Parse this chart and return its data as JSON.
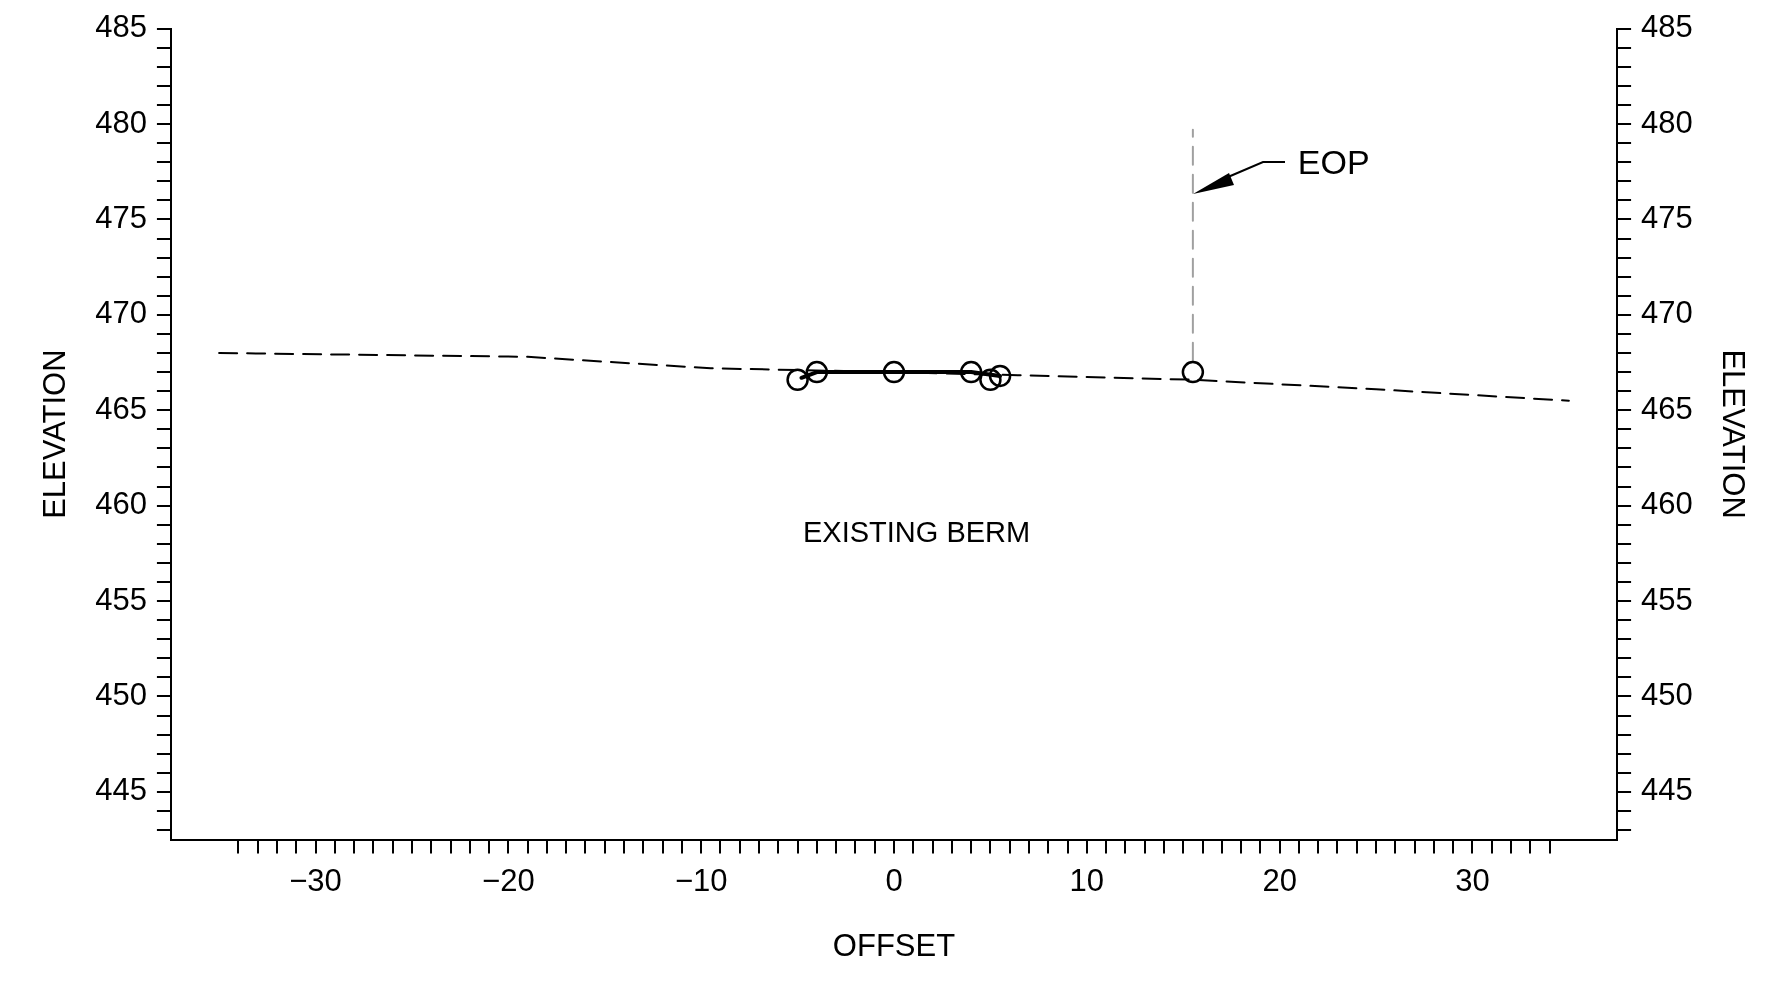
{
  "chart_data": {
    "type": "line",
    "xlabel": "OFFSET",
    "ylabel": "ELEVATION",
    "y2label": "ELEVATION",
    "xlim": [
      -37.5,
      37.5
    ],
    "ylim": [
      442.5,
      485
    ],
    "y2lim": [
      442.5,
      485
    ],
    "xticks": [
      {
        "value": -34,
        "label": null
      },
      {
        "value": -33,
        "label": null
      },
      {
        "value": -32,
        "label": null
      },
      {
        "value": -31,
        "label": null
      },
      {
        "value": -30,
        "label": "−30"
      },
      {
        "value": -29,
        "label": null
      },
      {
        "value": -28,
        "label": null
      },
      {
        "value": -27,
        "label": null
      },
      {
        "value": -26,
        "label": null
      },
      {
        "value": -25,
        "label": null
      },
      {
        "value": -24,
        "label": null
      },
      {
        "value": -23,
        "label": null
      },
      {
        "value": -22,
        "label": null
      },
      {
        "value": -21,
        "label": null
      },
      {
        "value": -20,
        "label": "−20"
      },
      {
        "value": -19,
        "label": null
      },
      {
        "value": -18,
        "label": null
      },
      {
        "value": -17,
        "label": null
      },
      {
        "value": -16,
        "label": null
      },
      {
        "value": -15,
        "label": null
      },
      {
        "value": -14,
        "label": null
      },
      {
        "value": -13,
        "label": null
      },
      {
        "value": -12,
        "label": null
      },
      {
        "value": -11,
        "label": null
      },
      {
        "value": -10,
        "label": "−10"
      },
      {
        "value": -9,
        "label": null
      },
      {
        "value": -8,
        "label": null
      },
      {
        "value": -7,
        "label": null
      },
      {
        "value": -6,
        "label": null
      },
      {
        "value": -5,
        "label": null
      },
      {
        "value": -4,
        "label": null
      },
      {
        "value": -3,
        "label": null
      },
      {
        "value": -2,
        "label": null
      },
      {
        "value": -1,
        "label": null
      },
      0,
      {
        "value": 1,
        "label": null
      },
      {
        "value": 2,
        "label": null
      },
      {
        "value": 3,
        "label": null
      },
      {
        "value": 4,
        "label": null
      },
      {
        "value": 5,
        "label": null
      },
      {
        "value": 6,
        "label": null
      },
      {
        "value": 7,
        "label": null
      },
      {
        "value": 8,
        "label": null
      },
      {
        "value": 9,
        "label": null
      },
      10,
      {
        "value": 11,
        "label": null
      },
      {
        "value": 12,
        "label": null
      },
      {
        "value": 13,
        "label": null
      },
      {
        "value": 14,
        "label": null
      },
      {
        "value": 15,
        "label": null
      },
      {
        "value": 16,
        "label": null
      },
      {
        "value": 17,
        "label": null
      },
      {
        "value": 18,
        "label": null
      },
      {
        "value": 19,
        "label": null
      },
      20,
      {
        "value": 21,
        "label": null
      },
      {
        "value": 22,
        "label": null
      },
      {
        "value": 23,
        "label": null
      },
      {
        "value": 24,
        "label": null
      },
      {
        "value": 25,
        "label": null
      },
      {
        "value": 26,
        "label": null
      },
      {
        "value": 27,
        "label": null
      },
      {
        "value": 28,
        "label": null
      },
      {
        "value": 29,
        "label": null
      },
      30,
      {
        "value": 31,
        "label": null
      },
      {
        "value": 32,
        "label": null
      },
      {
        "value": 33,
        "label": null
      },
      {
        "value": 34,
        "label": null
      }
    ],
    "yticks": [
      {
        "value": 443,
        "label": null
      },
      {
        "value": 444,
        "label": null
      },
      445,
      {
        "value": 446,
        "label": null
      },
      {
        "value": 447,
        "label": null
      },
      {
        "value": 448,
        "label": null
      },
      {
        "value": 449,
        "label": null
      },
      450,
      {
        "value": 451,
        "label": null
      },
      {
        "value": 452,
        "label": null
      },
      {
        "value": 453,
        "label": null
      },
      {
        "value": 454,
        "label": null
      },
      455,
      {
        "value": 456,
        "label": null
      },
      {
        "value": 457,
        "label": null
      },
      {
        "value": 458,
        "label": null
      },
      {
        "value": 459,
        "label": null
      },
      460,
      {
        "value": 461,
        "label": null
      },
      {
        "value": 462,
        "label": null
      },
      {
        "value": 463,
        "label": null
      },
      {
        "value": 464,
        "label": null
      },
      465,
      {
        "value": 466,
        "label": null
      },
      {
        "value": 467,
        "label": null
      },
      {
        "value": 468,
        "label": null
      },
      {
        "value": 469,
        "label": null
      },
      470,
      {
        "value": 471,
        "label": null
      },
      {
        "value": 472,
        "label": null
      },
      {
        "value": 473,
        "label": null
      },
      {
        "value": 474,
        "label": null
      },
      475,
      {
        "value": 476,
        "label": null
      },
      {
        "value": 477,
        "label": null
      },
      {
        "value": 478,
        "label": null
      },
      {
        "value": 479,
        "label": null
      },
      480,
      {
        "value": 481,
        "label": null
      },
      {
        "value": 482,
        "label": null
      },
      {
        "value": 483,
        "label": null
      },
      {
        "value": 484,
        "label": null
      },
      485
    ],
    "y2ticks": [
      {
        "value": 443,
        "label": null
      },
      {
        "value": 444,
        "label": null
      },
      445,
      {
        "value": 446,
        "label": null
      },
      {
        "value": 447,
        "label": null
      },
      {
        "value": 448,
        "label": null
      },
      {
        "value": 449,
        "label": null
      },
      450,
      {
        "value": 451,
        "label": null
      },
      {
        "value": 452,
        "label": null
      },
      {
        "value": 453,
        "label": null
      },
      {
        "value": 454,
        "label": null
      },
      455,
      {
        "value": 456,
        "label": null
      },
      {
        "value": 457,
        "label": null
      },
      {
        "value": 458,
        "label": null
      },
      {
        "value": 459,
        "label": null
      },
      460,
      {
        "value": 461,
        "label": null
      },
      {
        "value": 462,
        "label": null
      },
      {
        "value": 463,
        "label": null
      },
      {
        "value": 464,
        "label": null
      },
      465,
      {
        "value": 466,
        "label": null
      },
      {
        "value": 467,
        "label": null
      },
      {
        "value": 468,
        "label": null
      },
      {
        "value": 469,
        "label": null
      },
      470,
      {
        "value": 471,
        "label": null
      },
      {
        "value": 472,
        "label": null
      },
      {
        "value": 473,
        "label": null
      },
      {
        "value": 474,
        "label": null
      },
      475,
      {
        "value": 476,
        "label": null
      },
      {
        "value": 477,
        "label": null
      },
      {
        "value": 478,
        "label": null
      },
      {
        "value": 479,
        "label": null
      },
      480,
      {
        "value": 481,
        "label": null
      },
      {
        "value": 482,
        "label": null
      },
      {
        "value": 483,
        "label": null
      },
      {
        "value": 484,
        "label": null
      },
      485
    ],
    "grid": false,
    "legend": false,
    "series": [
      {
        "color": "#000000",
        "line_style": "dashed",
        "marker": "none",
        "x": [
          -35,
          -19,
          -9.5,
          0,
          15.5,
          25,
          35
        ],
        "values": [
          468,
          467.8,
          467.2,
          467,
          466.6,
          466.1,
          465.5
        ]
      },
      {
        "color": "#000000",
        "line_style": "solid",
        "marker": "none",
        "x": [
          -4.8,
          -4,
          4,
          5.5
        ],
        "values": [
          466.7,
          467,
          467,
          466.8
        ]
      },
      {
        "type": "scatter",
        "color": "#000000",
        "marker": "circle",
        "x": [
          -5,
          -4,
          0,
          4,
          5,
          5.5,
          15.5
        ],
        "values": [
          466.6,
          467,
          467,
          467,
          466.6,
          466.8,
          467
        ]
      },
      {
        "color": "#a0a0a0",
        "line_style": "dashed",
        "marker": "none",
        "x": [
          15.5,
          15.5
        ],
        "values": [
          467.6,
          479.7
        ]
      }
    ],
    "annotations": [
      "EOP",
      "EXISTING BERM"
    ]
  }
}
